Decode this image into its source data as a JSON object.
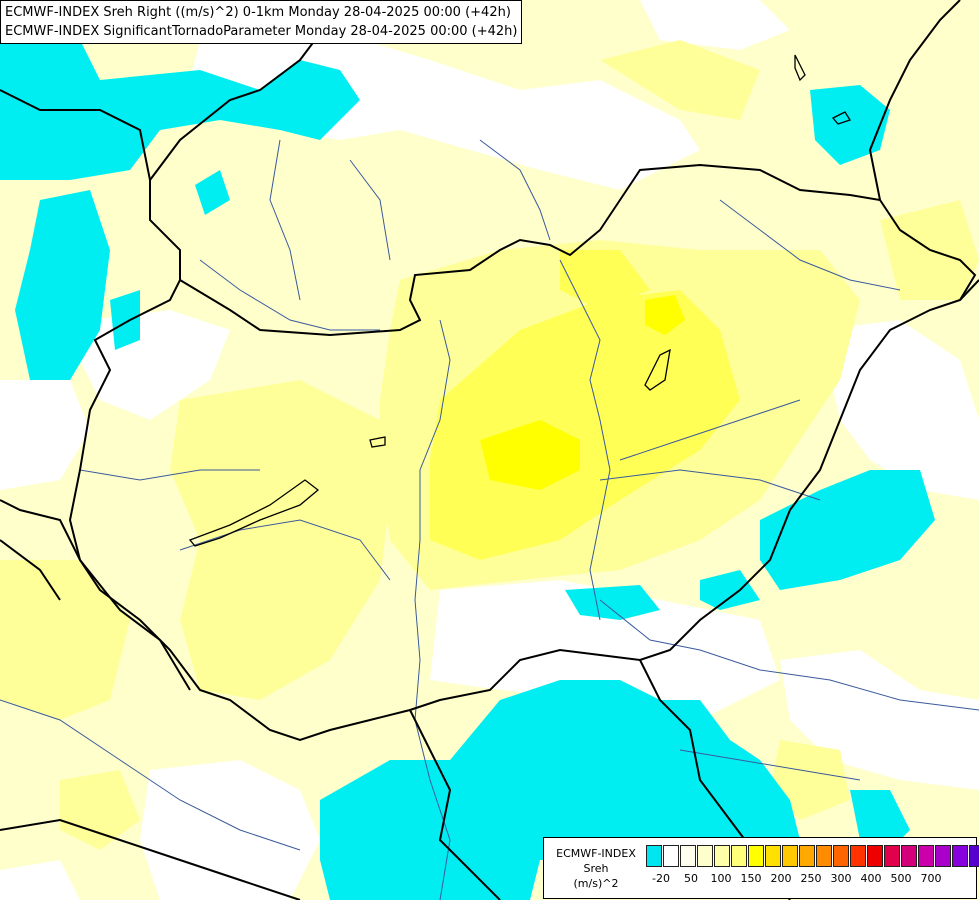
{
  "header": {
    "line1": "ECMWF-INDEX Sreh Right ((m/s)^2) 0-1km Monday 28-04-2025 00:00 (+42h)",
    "line2": "ECMWF-INDEX SignificantTornadoParameter Monday 28-04-2025 00:00 (+42h)"
  },
  "legend": {
    "line1": "ECMWF-INDEX",
    "line2": "Sreh",
    "line3": "(m/s)^2",
    "colors": [
      "#00e5f0",
      "#ffffff",
      "#ffffee",
      "#ffffcc",
      "#ffffa8",
      "#ffff7a",
      "#ffff00",
      "#ffe000",
      "#ffc800",
      "#ffa800",
      "#ff8c00",
      "#ff6400",
      "#ff3200",
      "#ee0000",
      "#e0004c",
      "#d4007a",
      "#cc00aa",
      "#aa00cc",
      "#8800dd",
      "#5500cc",
      "#2200aa",
      "#000080"
    ],
    "ticks": [
      "-20",
      "50",
      "100",
      "150",
      "200",
      "250",
      "300",
      "400",
      "500",
      "700"
    ]
  },
  "map_colors": {
    "cyan": "#00eef2",
    "white": "#ffffff",
    "pale": "#ffffcc",
    "light": "#ffff99",
    "mid": "#ffff55",
    "strong": "#ffff00",
    "border": "#000000",
    "river": "#3a5a9c"
  }
}
